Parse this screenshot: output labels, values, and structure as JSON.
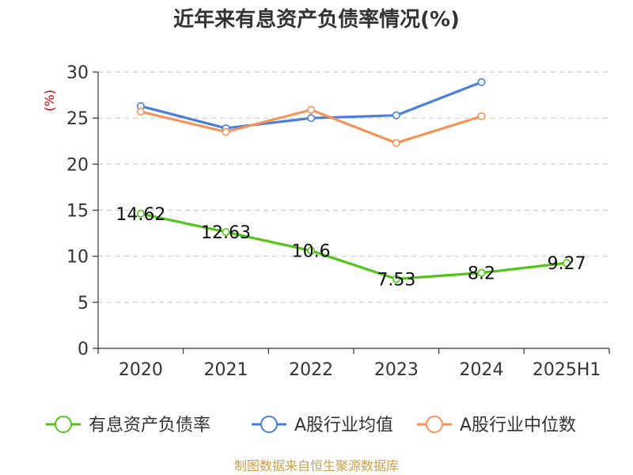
{
  "chart_data": {
    "type": "line",
    "title": "近年来有息资产负债率情况(%)",
    "ylabel": "(%)",
    "xlabel": "",
    "categories": [
      "2020",
      "2021",
      "2022",
      "2023",
      "2024",
      "2025H1"
    ],
    "ylim": [
      0,
      30
    ],
    "yticks": [
      0,
      5,
      10,
      15,
      20,
      25,
      30
    ],
    "grid": true,
    "legend_position": "bottom",
    "series": [
      {
        "name": "有息资产负债率",
        "color": "#52c41a",
        "values": [
          14.62,
          12.63,
          10.6,
          7.53,
          8.2,
          9.27
        ],
        "labels": [
          "14.62",
          "12.63",
          "10.6",
          "7.53",
          "8.2",
          "9.27"
        ]
      },
      {
        "name": "A股行业均值",
        "color": "#4a7fdc",
        "values": [
          26.3,
          23.9,
          25.0,
          25.3,
          28.9,
          null
        ]
      },
      {
        "name": "A股行业中位数",
        "color": "#f5935a",
        "values": [
          25.7,
          23.5,
          25.9,
          22.3,
          25.2,
          null
        ]
      }
    ]
  },
  "source": "制图数据来自恒生聚源数据库"
}
